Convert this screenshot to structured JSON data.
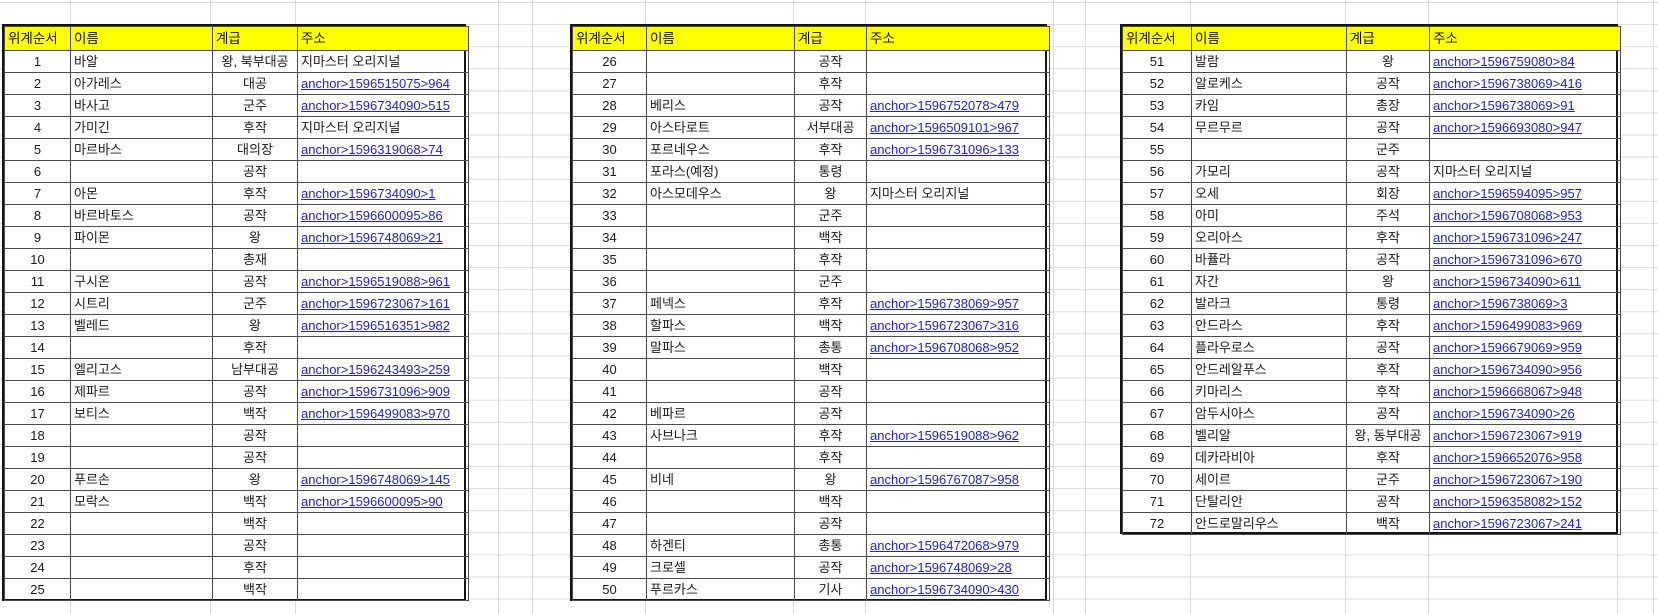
{
  "columns": [
    "위계순서",
    "이름",
    "계급",
    "주소"
  ],
  "colors": {
    "header_bg": "#ffff00",
    "link": "#2222cc",
    "grid_line": "#dcdcdc",
    "border": "#151515",
    "text": "#1b1b1b"
  },
  "original_text_values": [
    "지마스터 오리지널"
  ],
  "tables": [
    {
      "rows": [
        {
          "no": 1,
          "name": "바알",
          "rank": "왕, 북부대공",
          "addr": "지마스터 오리지널",
          "link": false
        },
        {
          "no": 2,
          "name": "아가레스",
          "rank": "대공",
          "addr": "anchor>1596515075>964",
          "link": true
        },
        {
          "no": 3,
          "name": "바사고",
          "rank": "군주",
          "addr": "anchor>1596734090>515",
          "link": true
        },
        {
          "no": 4,
          "name": "가미긴",
          "rank": "후작",
          "addr": "지마스터 오리지널",
          "link": false
        },
        {
          "no": 5,
          "name": "마르바스",
          "rank": "대의장",
          "addr": "anchor>1596319068>74",
          "link": true
        },
        {
          "no": 6,
          "name": "",
          "rank": "공작",
          "addr": "",
          "link": false
        },
        {
          "no": 7,
          "name": "아몬",
          "rank": "후작",
          "addr": "anchor>1596734090>1",
          "link": true
        },
        {
          "no": 8,
          "name": "바르바토스",
          "rank": "공작",
          "addr": "anchor>1596600095>86",
          "link": true
        },
        {
          "no": 9,
          "name": "파이몬",
          "rank": "왕",
          "addr": "anchor>1596748069>21",
          "link": true
        },
        {
          "no": 10,
          "name": "",
          "rank": "총재",
          "addr": "",
          "link": false
        },
        {
          "no": 11,
          "name": "구시온",
          "rank": "공작",
          "addr": "anchor>1596519088>961",
          "link": true
        },
        {
          "no": 12,
          "name": "시트리",
          "rank": "군주",
          "addr": "anchor>1596723067>161",
          "link": true
        },
        {
          "no": 13,
          "name": "벨레드",
          "rank": "왕",
          "addr": "anchor>1596516351>982",
          "link": true
        },
        {
          "no": 14,
          "name": "",
          "rank": "후작",
          "addr": "",
          "link": false
        },
        {
          "no": 15,
          "name": "엘리고스",
          "rank": "남부대공",
          "addr": "anchor>1596243493>259",
          "link": true
        },
        {
          "no": 16,
          "name": "제파르",
          "rank": "공작",
          "addr": "anchor>1596731096>909",
          "link": true
        },
        {
          "no": 17,
          "name": "보티스",
          "rank": "백작",
          "addr": "anchor>1596499083>970",
          "link": true
        },
        {
          "no": 18,
          "name": "",
          "rank": "공작",
          "addr": "",
          "link": false
        },
        {
          "no": 19,
          "name": "",
          "rank": "공작",
          "addr": "",
          "link": false
        },
        {
          "no": 20,
          "name": "푸르손",
          "rank": "왕",
          "addr": "anchor>1596748069>145",
          "link": true
        },
        {
          "no": 21,
          "name": "모락스",
          "rank": "백작",
          "addr": "anchor>1596600095>90",
          "link": true
        },
        {
          "no": 22,
          "name": "",
          "rank": "백작",
          "addr": "",
          "link": false
        },
        {
          "no": 23,
          "name": "",
          "rank": "공작",
          "addr": "",
          "link": false
        },
        {
          "no": 24,
          "name": "",
          "rank": "후작",
          "addr": "",
          "link": false
        },
        {
          "no": 25,
          "name": "",
          "rank": "백작",
          "addr": "",
          "link": false
        }
      ]
    },
    {
      "rows": [
        {
          "no": 26,
          "name": "",
          "rank": "공작",
          "addr": "",
          "link": false
        },
        {
          "no": 27,
          "name": "",
          "rank": "후작",
          "addr": "",
          "link": false
        },
        {
          "no": 28,
          "name": "베리스",
          "rank": "공작",
          "addr": "anchor>1596752078>479",
          "link": true
        },
        {
          "no": 29,
          "name": "아스타로트",
          "rank": "서부대공",
          "addr": "anchor>1596509101>967",
          "link": true
        },
        {
          "no": 30,
          "name": "포르네우스",
          "rank": "후작",
          "addr": "anchor>1596731096>133",
          "link": true
        },
        {
          "no": 31,
          "name": "포라스(예정)",
          "rank": "통령",
          "addr": "",
          "link": false
        },
        {
          "no": 32,
          "name": "아스모데우스",
          "rank": "왕",
          "addr": "지마스터 오리지널",
          "link": false
        },
        {
          "no": 33,
          "name": "",
          "rank": "군주",
          "addr": "",
          "link": false
        },
        {
          "no": 34,
          "name": "",
          "rank": "백작",
          "addr": "",
          "link": false
        },
        {
          "no": 35,
          "name": "",
          "rank": "후작",
          "addr": "",
          "link": false
        },
        {
          "no": 36,
          "name": "",
          "rank": "군주",
          "addr": "",
          "link": false
        },
        {
          "no": 37,
          "name": "페넥스",
          "rank": "후작",
          "addr": "anchor>1596738069>957",
          "link": true
        },
        {
          "no": 38,
          "name": "할파스",
          "rank": "백작",
          "addr": "anchor>1596723067>316",
          "link": true
        },
        {
          "no": 39,
          "name": "말파스",
          "rank": "총통",
          "addr": "anchor>1596708068>952",
          "link": true
        },
        {
          "no": 40,
          "name": "",
          "rank": "백작",
          "addr": "",
          "link": false
        },
        {
          "no": 41,
          "name": "",
          "rank": "공작",
          "addr": "",
          "link": false
        },
        {
          "no": 42,
          "name": "베파르",
          "rank": "공작",
          "addr": "",
          "link": false
        },
        {
          "no": 43,
          "name": "사브나크",
          "rank": "후작",
          "addr": "anchor>1596519088>962",
          "link": true
        },
        {
          "no": 44,
          "name": "",
          "rank": "후작",
          "addr": "",
          "link": false
        },
        {
          "no": 45,
          "name": "비네",
          "rank": "왕",
          "addr": "anchor>1596767087>958",
          "link": true
        },
        {
          "no": 46,
          "name": "",
          "rank": "백작",
          "addr": "",
          "link": false
        },
        {
          "no": 47,
          "name": "",
          "rank": "공작",
          "addr": "",
          "link": false
        },
        {
          "no": 48,
          "name": "하겐티",
          "rank": "총통",
          "addr": "anchor>1596472068>979",
          "link": true
        },
        {
          "no": 49,
          "name": "크로셀",
          "rank": "공작",
          "addr": "anchor>1596748069>28",
          "link": true
        },
        {
          "no": 50,
          "name": "푸르카스",
          "rank": "기사",
          "addr": "anchor>1596734090>430",
          "link": true
        }
      ]
    },
    {
      "rows": [
        {
          "no": 51,
          "name": "발람",
          "rank": "왕",
          "addr": "anchor>1596759080>84",
          "link": true
        },
        {
          "no": 52,
          "name": "알로케스",
          "rank": "공작",
          "addr": "anchor>1596738069>416",
          "link": true
        },
        {
          "no": 53,
          "name": "카임",
          "rank": "총장",
          "addr": "anchor>1596738069>91",
          "link": true
        },
        {
          "no": 54,
          "name": "무르무르",
          "rank": "공작",
          "addr": "anchor>1596693080>947",
          "link": true
        },
        {
          "no": 55,
          "name": "",
          "rank": "군주",
          "addr": "",
          "link": false
        },
        {
          "no": 56,
          "name": "가모리",
          "rank": "공작",
          "addr": "지마스터 오리지널",
          "link": false
        },
        {
          "no": 57,
          "name": "오세",
          "rank": "회장",
          "addr": "anchor>1596594095>957",
          "link": true
        },
        {
          "no": 58,
          "name": "아미",
          "rank": "주석",
          "addr": "anchor>1596708068>953",
          "link": true
        },
        {
          "no": 59,
          "name": "오리아스",
          "rank": "후작",
          "addr": "anchor>1596731096>247",
          "link": true
        },
        {
          "no": 60,
          "name": "바퓰라",
          "rank": "공작",
          "addr": "anchor>1596731096>670",
          "link": true
        },
        {
          "no": 61,
          "name": "자간",
          "rank": "왕",
          "addr": "anchor>1596734090>611",
          "link": true
        },
        {
          "no": 62,
          "name": "발라크",
          "rank": "통령",
          "addr": "anchor>1596738069>3",
          "link": true
        },
        {
          "no": 63,
          "name": "안드라스",
          "rank": "후작",
          "addr": "anchor>1596499083>969",
          "link": true
        },
        {
          "no": 64,
          "name": "플라우로스",
          "rank": "공작",
          "addr": "anchor>1596679069>959",
          "link": true
        },
        {
          "no": 65,
          "name": "안드레알푸스",
          "rank": "후작",
          "addr": "anchor>1596734090>956",
          "link": true
        },
        {
          "no": 66,
          "name": "키마리스",
          "rank": "후작",
          "addr": "anchor>1596668067>948",
          "link": true
        },
        {
          "no": 67,
          "name": "암두시아스",
          "rank": "공작",
          "addr": "anchor>1596734090>26",
          "link": true
        },
        {
          "no": 68,
          "name": "벨리알",
          "rank": "왕, 동부대공",
          "addr": "anchor>1596723067>919",
          "link": true
        },
        {
          "no": 69,
          "name": "데카라비아",
          "rank": "후작",
          "addr": "anchor>1596652076>958",
          "link": true
        },
        {
          "no": 70,
          "name": "세이르",
          "rank": "군주",
          "addr": "anchor>1596723067>190",
          "link": true
        },
        {
          "no": 71,
          "name": "단탈리안",
          "rank": "공작",
          "addr": "anchor>1596358082>152",
          "link": true
        },
        {
          "no": 72,
          "name": "안드로말리우스",
          "rank": "백작",
          "addr": "anchor>1596723067>241",
          "link": true
        }
      ]
    }
  ]
}
